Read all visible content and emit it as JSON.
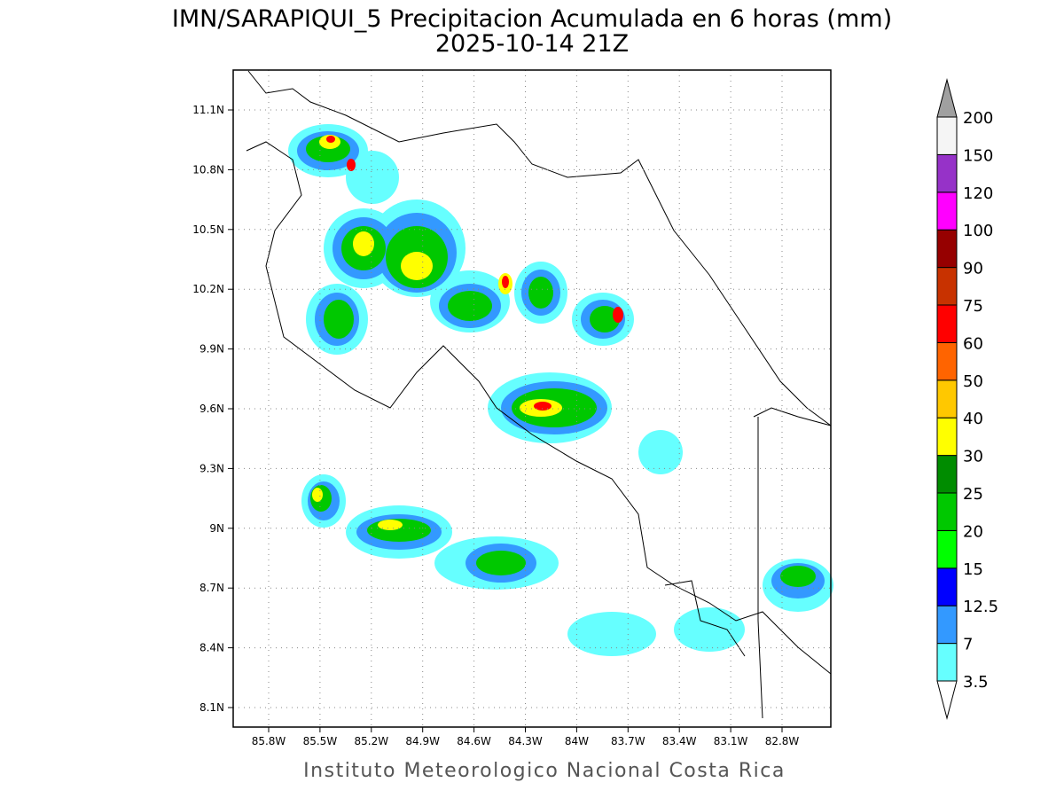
{
  "title": "IMN/SARAPIQUI_5 Precipitacion Acumulada en 6 horas (mm)",
  "subtitle": "2025-10-14 21Z",
  "lat_labels": [
    "11.1N",
    "10.8N",
    "10.5N",
    "10.2N",
    "9.9N",
    "9.6N",
    "9.3N",
    "9N",
    "8.7N",
    "8.4N",
    "8.1N"
  ],
  "lon_labels": [
    "85.8W",
    "85.5W",
    "85.2W",
    "84.9W",
    "84.6W",
    "84.3W",
    "84W",
    "83.7W",
    "83.4W",
    "83.1W",
    "82.8W"
  ],
  "colorbar": {
    "levels": [
      3.5,
      7,
      12.5,
      15,
      20,
      25,
      30,
      40,
      50,
      60,
      75,
      90,
      100,
      120,
      150,
      200
    ],
    "colors": [
      "#66ffff",
      "#3399ff",
      "#0000ff",
      "#00ff00",
      "#00c800",
      "#008c00",
      "#ffff00",
      "#ffc800",
      "#ff6400",
      "#ff0000",
      "#c83200",
      "#960000",
      "#ff00ff",
      "#9632c8",
      "#f5f5f5"
    ],
    "over_color": "#a0a0a0",
    "under_color": "#ffffff"
  },
  "footer": "Instituto Meteorologico Nacional Costa Rica"
}
